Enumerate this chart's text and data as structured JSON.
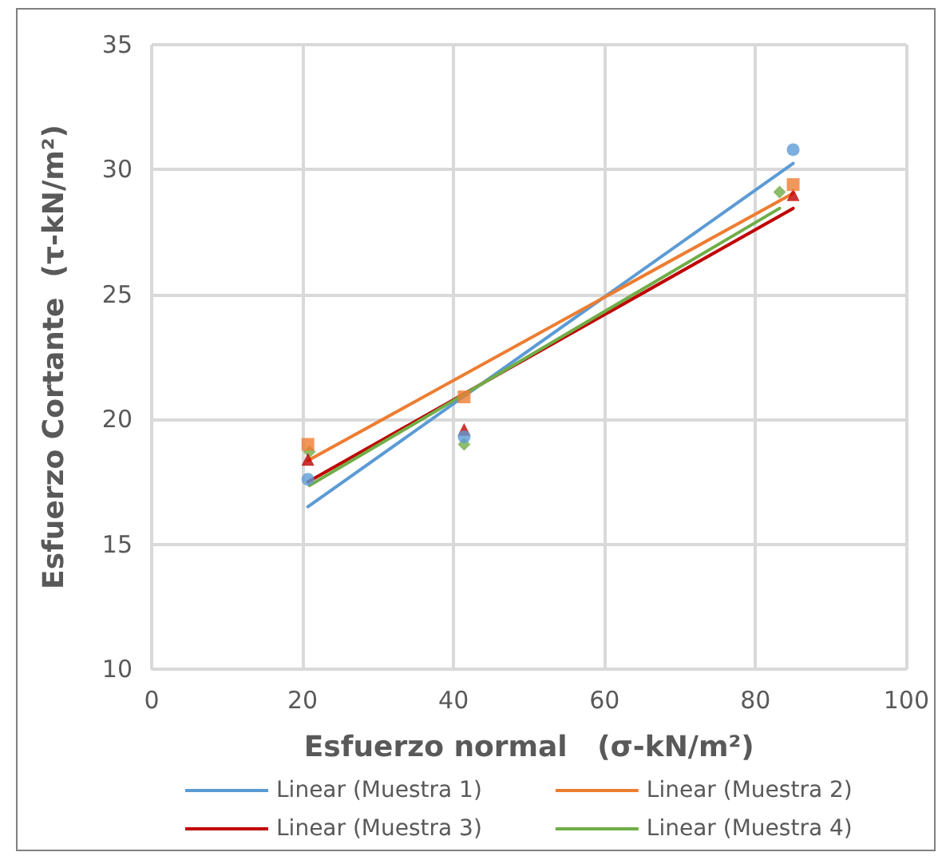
{
  "chart_data": {
    "type": "scatter",
    "xlabel": "Esfuerzo normal   (σ-kN/m²)",
    "ylabel": "Esfuerzo Cortante  (τ-kN/m²)",
    "xlim": [
      0,
      100
    ],
    "xticks": [
      0,
      20,
      40,
      60,
      80,
      100
    ],
    "ylim": [
      10,
      35
    ],
    "yticks": [
      10,
      15,
      20,
      25,
      30,
      35
    ],
    "grid": true,
    "legend": "bottom",
    "series": [
      {
        "type": "scatter",
        "marker": "circle",
        "color": "#5b9bd5",
        "x": [
          20.7,
          41.4,
          85.0
        ],
        "values": [
          17.6,
          19.3,
          30.8
        ]
      },
      {
        "type": "scatter",
        "marker": "square",
        "color": "#ed7d31",
        "x": [
          20.7,
          41.4,
          85.0
        ],
        "values": [
          19.0,
          20.9,
          29.4
        ]
      },
      {
        "type": "scatter",
        "marker": "triangle",
        "color": "#c00000",
        "x": [
          20.7,
          41.4,
          85.0
        ],
        "values": [
          18.4,
          19.6,
          29.0
        ]
      },
      {
        "type": "scatter",
        "marker": "diamond",
        "color": "#70ad47",
        "x": [
          20.9,
          41.4,
          83.2
        ],
        "values": [
          18.7,
          19.0,
          29.1
        ]
      },
      {
        "type": "line",
        "name": "Linear (Muestra 1)",
        "marker": "none",
        "color": "#5b9bd5",
        "x": [
          20.7,
          85.0
        ],
        "values": [
          16.5,
          30.25
        ]
      },
      {
        "type": "line",
        "name": "Linear (Muestra 2)",
        "marker": "none",
        "color": "#ed7d31",
        "x": [
          20.7,
          85.0
        ],
        "values": [
          18.35,
          29.05
        ]
      },
      {
        "type": "line",
        "name": "Linear (Muestra 3)",
        "marker": "none",
        "color": "#c00000",
        "x": [
          20.7,
          85.0
        ],
        "values": [
          17.5,
          28.45
        ]
      },
      {
        "type": "line",
        "name": "Linear (Muestra 4)",
        "marker": "none",
        "color": "#70ad47",
        "x": [
          20.9,
          83.2
        ],
        "values": [
          17.35,
          28.45
        ]
      }
    ]
  }
}
